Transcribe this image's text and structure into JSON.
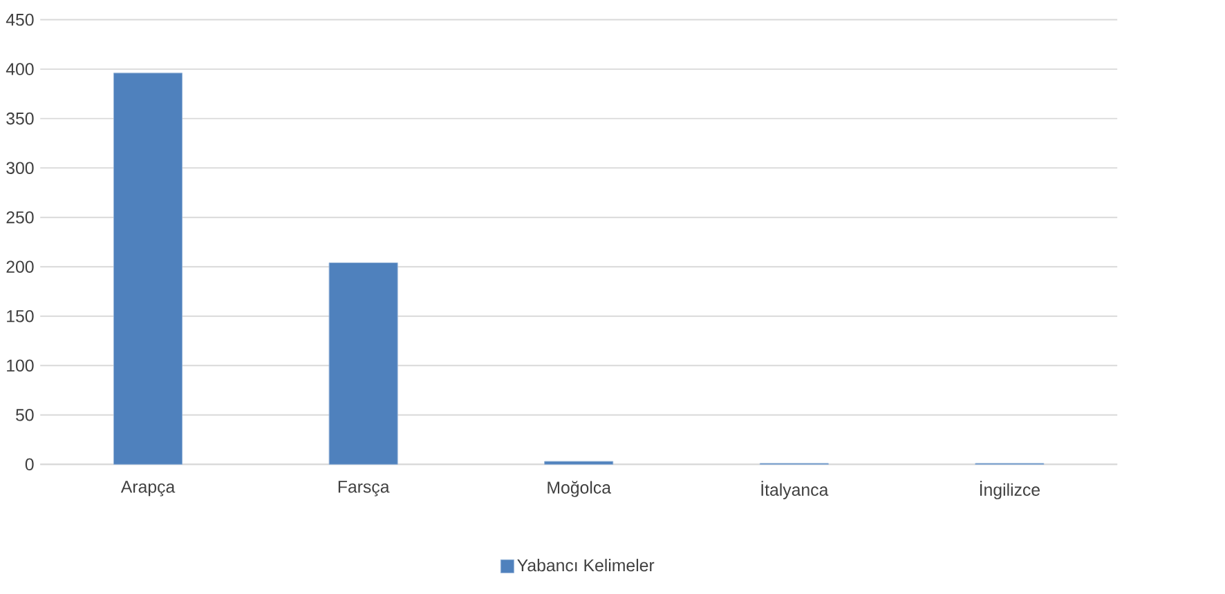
{
  "chart_data": {
    "type": "bar",
    "categories": [
      "Arapça",
      "Farsça",
      "Moğolca",
      "İtalyanca",
      "İngilizce"
    ],
    "series": [
      {
        "name": "Yabancı Kelimeler",
        "color": "#4f81bd",
        "values": [
          396,
          204,
          3,
          1,
          1
        ]
      }
    ],
    "ylim": [
      0,
      450
    ],
    "yticks": [
      0,
      50,
      100,
      150,
      200,
      250,
      300,
      350,
      400,
      450
    ],
    "grid": "y",
    "legend": "bottom"
  }
}
